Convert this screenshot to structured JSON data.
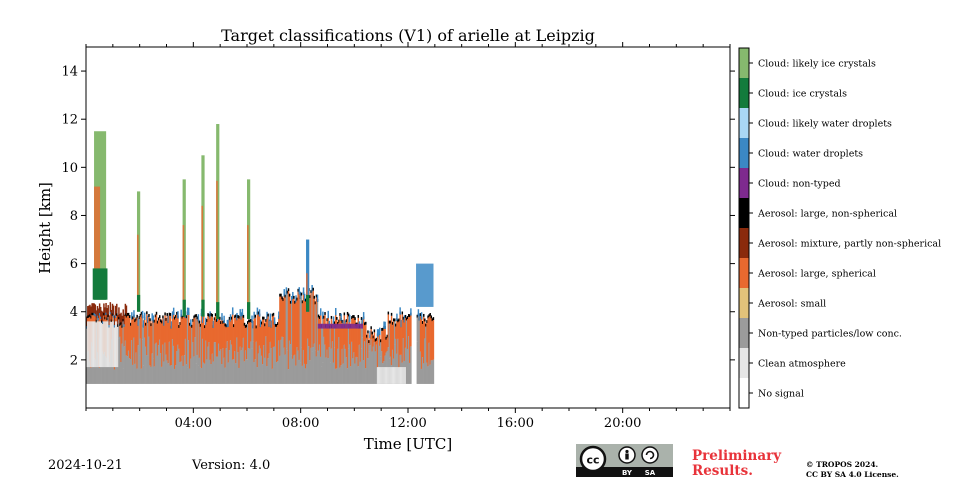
{
  "chart_data": {
    "type": "heatmap",
    "title": "Target classifications (V1) of arielle at Leipzig",
    "xlabel": "Time [UTC]",
    "ylabel": "Height [km]",
    "xlim": [
      0,
      24
    ],
    "ylim": [
      0,
      15
    ],
    "x_ticks": [
      4,
      8,
      12,
      16,
      20
    ],
    "x_tick_labels": [
      "04:00",
      "08:00",
      "12:00",
      "16:00",
      "20:00"
    ],
    "y_ticks": [
      2,
      4,
      6,
      8,
      10,
      12,
      14
    ],
    "y_tick_labels": [
      "2",
      "4",
      "6",
      "8",
      "10",
      "12",
      "14"
    ],
    "legend_placement": "right colorbar",
    "classes": [
      {
        "label": "Cloud: likely ice crystals",
        "color": "#86b96e"
      },
      {
        "label": "Cloud: ice crystals",
        "color": "#137b3c"
      },
      {
        "label": "Cloud: likely water droplets",
        "color": "#a9d7f5"
      },
      {
        "label": "Cloud: water droplets",
        "color": "#3b88c4"
      },
      {
        "label": "Cloud: non-typed",
        "color": "#7e2a8e"
      },
      {
        "label": "Aerosol: large, non-spherical",
        "color": "#000000"
      },
      {
        "label": "Aerosol: mixture, partly non-spherical",
        "color": "#8a2a0c"
      },
      {
        "label": "Aerosol: large, spherical",
        "color": "#e8692f"
      },
      {
        "label": "Aerosol: small",
        "color": "#e2c27a"
      },
      {
        "label": "Non-typed particles/low conc.",
        "color": "#9b9b9b"
      },
      {
        "label": "Clean atmosphere",
        "color": "#e6e6e6"
      },
      {
        "label": "No signal",
        "color": "#ffffff"
      }
    ],
    "data_coverage_hours": [
      [
        0,
        12.1
      ],
      [
        12.3,
        12.95
      ]
    ],
    "ground_bins_km": 1.0,
    "aerosol_layer_top_km_approx": 3.6,
    "cloud_columns": [
      {
        "time": 0.3,
        "top_km": 11.5,
        "base_km": 4.5,
        "class": "Cloud: likely ice crystals"
      },
      {
        "time": 1.9,
        "top_km": 9.0,
        "base_km": 4.0,
        "class": "Cloud: likely ice crystals"
      },
      {
        "time": 3.6,
        "top_km": 9.5,
        "base_km": 3.8,
        "class": "Cloud: likely ice crystals"
      },
      {
        "time": 4.3,
        "top_km": 10.5,
        "base_km": 3.8,
        "class": "Cloud: likely ice crystals"
      },
      {
        "time": 4.85,
        "top_km": 11.8,
        "base_km": 3.7,
        "class": "Cloud: likely ice crystals"
      },
      {
        "time": 6.0,
        "top_km": 9.5,
        "base_km": 3.7,
        "class": "Cloud: likely ice crystals"
      },
      {
        "time": 8.2,
        "top_km": 7.0,
        "base_km": 4.0,
        "class": "Cloud: water droplets"
      }
    ]
  },
  "footer": {
    "date": "2024-10-21",
    "version": "Version: 4.0",
    "preliminary_line1": "Preliminary",
    "preliminary_line2": "Results.",
    "copyright_line1": "© TROPOS 2024.",
    "copyright_line2": "CC BY SA 4.0 License.",
    "cc_badge": {
      "cc": "cc",
      "by": "BY",
      "sa": "SA"
    }
  }
}
